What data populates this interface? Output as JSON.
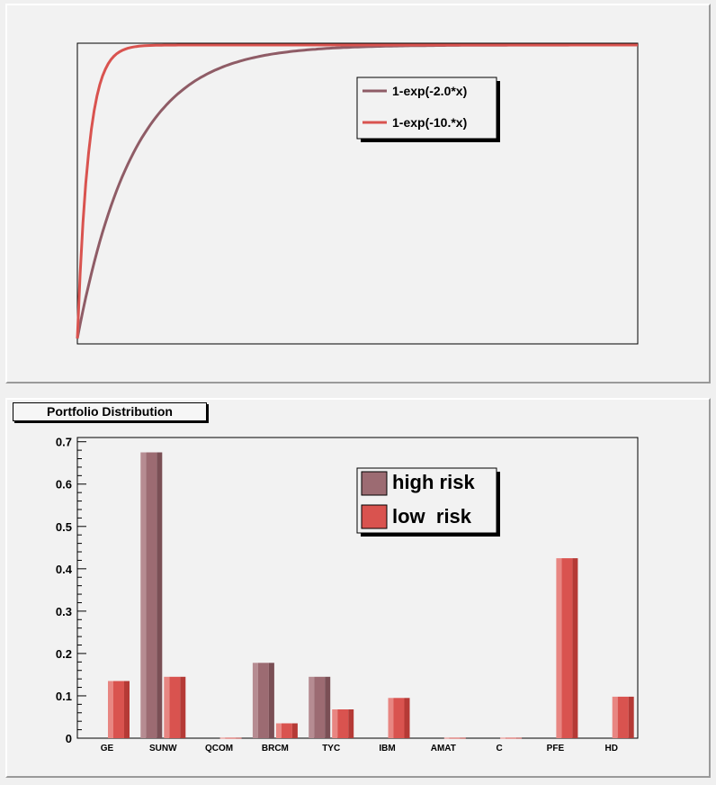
{
  "colors": {
    "high_risk": "#9c6b72",
    "high_risk_shade": "#7a4f55",
    "high_risk_light": "#b68c92",
    "low_risk": "#d9534f",
    "low_risk_shade": "#b53a36",
    "low_risk_light": "#e88682",
    "curve_slow": "#8f5c66",
    "curve_fast": "#d9534f"
  },
  "chart_data": [
    {
      "type": "line",
      "title": "",
      "xlabel": "",
      "ylabel": "",
      "xlim": [
        0,
        5
      ],
      "ylim": [
        0,
        1
      ],
      "legend_position": "upper-center-right",
      "series": [
        {
          "name": "1-exp(-2.0*x)",
          "k": 2.0,
          "x": [
            0,
            0.25,
            0.5,
            0.75,
            1,
            1.25,
            1.5,
            2,
            2.5,
            3,
            3.5,
            4,
            4.5,
            5
          ]
        },
        {
          "name": "1-exp(-10.*x)",
          "k": 10.0,
          "x": [
            0,
            0.05,
            0.1,
            0.15,
            0.2,
            0.3,
            0.4,
            0.6,
            0.8,
            1,
            2,
            3,
            4,
            5
          ]
        }
      ]
    },
    {
      "type": "bar",
      "title": "Portfolio Distribution",
      "xlabel": "",
      "ylabel": "",
      "ylim": [
        0,
        0.71
      ],
      "yticks": [
        "0",
        "0.1",
        "0.2",
        "0.3",
        "0.4",
        "0.5",
        "0.6",
        "0.7"
      ],
      "ytick_values": [
        0,
        0.1,
        0.2,
        0.3,
        0.4,
        0.5,
        0.6,
        0.7
      ],
      "legend_position": "top-center-right",
      "categories": [
        "GE",
        "SUNW",
        "QCOM",
        "BRCM",
        "TYC",
        "IBM",
        "AMAT",
        "C",
        "PFE",
        "HD"
      ],
      "series": [
        {
          "name": "high risk",
          "values": [
            0,
            0.675,
            0,
            0.178,
            0.145,
            0,
            0,
            0,
            0,
            0
          ]
        },
        {
          "name": "low  risk",
          "values": [
            0.135,
            0.145,
            0.001,
            0.035,
            0.068,
            0.095,
            0.001,
            0.001,
            0.425,
            0.098
          ]
        }
      ]
    }
  ]
}
